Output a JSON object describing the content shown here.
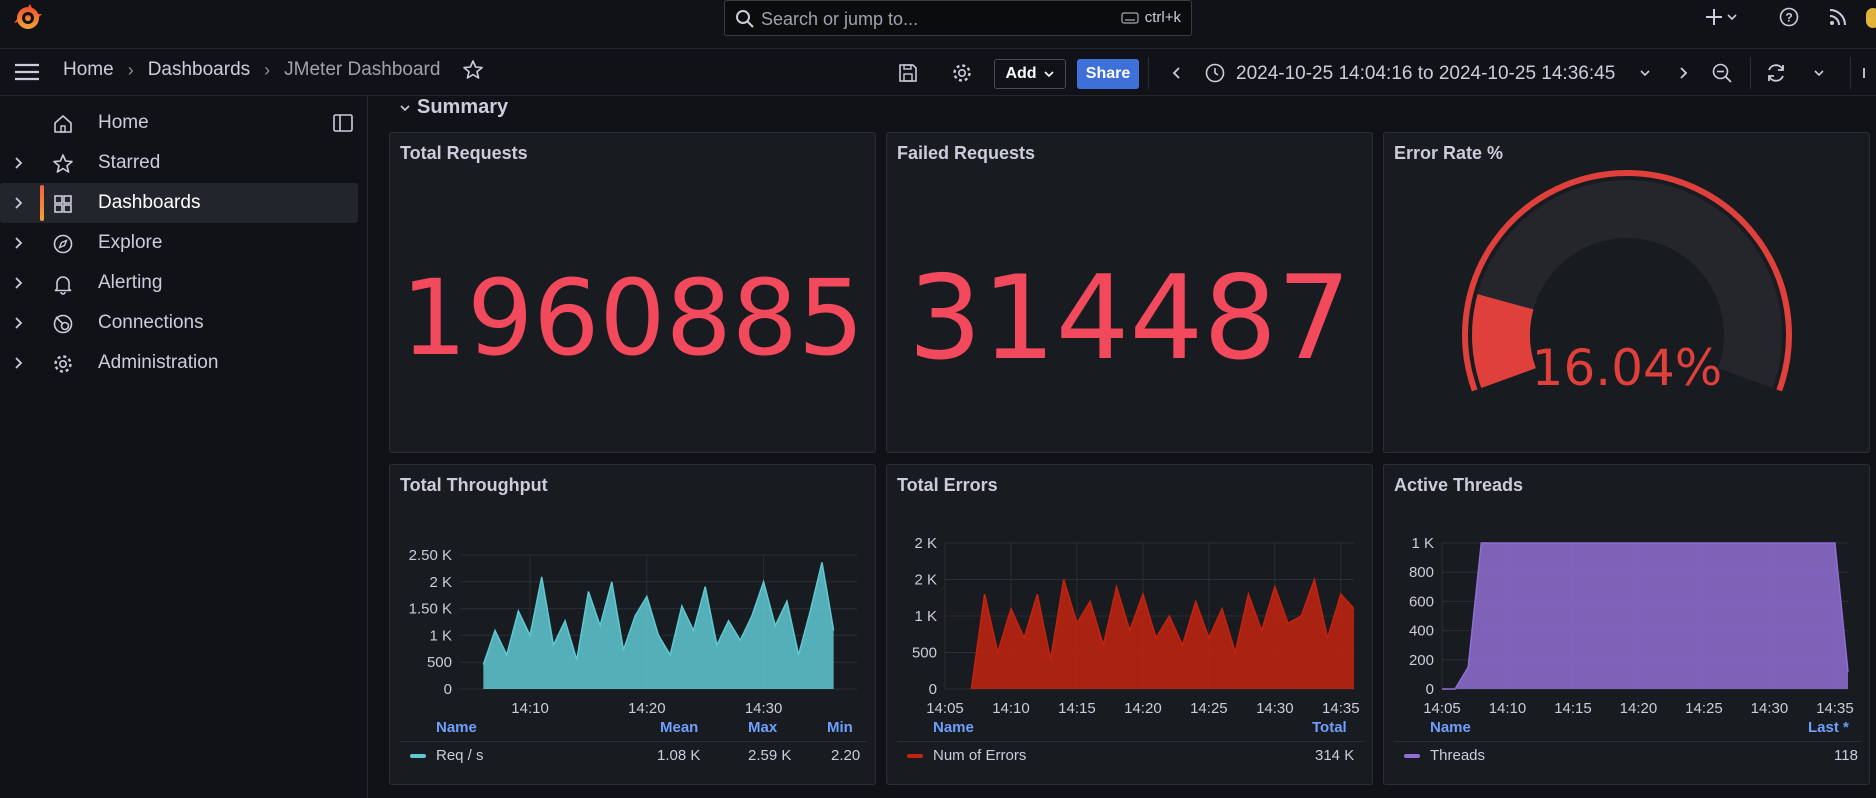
{
  "search": {
    "placeholder": "Search or jump to...",
    "shortcut": "ctrl+k"
  },
  "breadcrumb": {
    "home": "Home",
    "dashboards": "Dashboards",
    "current": "JMeter Dashboard"
  },
  "toolbar": {
    "add_label": "Add",
    "share_label": "Share",
    "time_range": "2024-10-25 14:04:16 to 2024-10-25 14:36:45"
  },
  "sidebar": {
    "items": [
      {
        "label": "Home",
        "icon": "home-icon"
      },
      {
        "label": "Starred",
        "icon": "star-icon"
      },
      {
        "label": "Dashboards",
        "icon": "dashboards-grid-icon"
      },
      {
        "label": "Explore",
        "icon": "compass-icon"
      },
      {
        "label": "Alerting",
        "icon": "bell-icon"
      },
      {
        "label": "Connections",
        "icon": "connections-icon"
      },
      {
        "label": "Administration",
        "icon": "gear-icon"
      }
    ]
  },
  "row": {
    "title": "Summary"
  },
  "panels": {
    "total_requests": {
      "title": "Total Requests",
      "value": "1960885"
    },
    "failed_requests": {
      "title": "Failed Requests",
      "value": "314487"
    },
    "error_rate": {
      "title": "Error Rate %",
      "value": "16.04%",
      "fraction": 0.1604
    },
    "throughput": {
      "title": "Total Throughput",
      "legend": {
        "name_h": "Name",
        "mean_h": "Mean",
        "max_h": "Max",
        "min_h": "Min",
        "series": "Req / s",
        "mean": "1.08 K",
        "max": "2.59 K",
        "min": "2.20"
      }
    },
    "errors": {
      "title": "Total Errors",
      "legend": {
        "name_h": "Name",
        "total_h": "Total",
        "series": "Num of Errors",
        "total": "314 K"
      }
    },
    "threads": {
      "title": "Active Threads",
      "legend": {
        "name_h": "Name",
        "last_h": "Last *",
        "series": "Threads",
        "last": "118"
      }
    }
  },
  "chart_data": [
    {
      "type": "area",
      "title": "Total Throughput",
      "color": "#5fc9d3",
      "yticks": [
        "2.50 K",
        "2 K",
        "1.50 K",
        "1 K",
        "500",
        "0"
      ],
      "ylim": [
        0,
        2750
      ],
      "xticks": [
        "14:10",
        "14:20",
        "14:30"
      ],
      "x": [
        "14:06",
        "14:07",
        "14:08",
        "14:09",
        "14:10",
        "14:11",
        "14:12",
        "14:13",
        "14:14",
        "14:15",
        "14:16",
        "14:17",
        "14:18",
        "14:19",
        "14:20",
        "14:21",
        "14:22",
        "14:23",
        "14:24",
        "14:25",
        "14:26",
        "14:27",
        "14:28",
        "14:29",
        "14:30",
        "14:31",
        "14:32",
        "14:33",
        "14:34",
        "14:35",
        "14:36"
      ],
      "series": [
        {
          "name": "Req / s",
          "values": [
            500,
            1200,
            700,
            1600,
            1100,
            2300,
            900,
            1400,
            600,
            2000,
            1300,
            2200,
            800,
            1500,
            1900,
            1100,
            700,
            1700,
            1200,
            2100,
            900,
            1400,
            1000,
            1500,
            2200,
            1300,
            1800,
            700,
            1600,
            2600,
            1200
          ]
        }
      ]
    },
    {
      "type": "area",
      "title": "Total Errors",
      "color": "#c4230f",
      "yticks": [
        "2 K",
        "2 K",
        "1 K",
        "500",
        "0"
      ],
      "ylim": [
        0,
        2000
      ],
      "xticks": [
        "14:05",
        "14:10",
        "14:15",
        "14:20",
        "14:25",
        "14:30",
        "14:35"
      ],
      "x": [
        "14:07",
        "14:08",
        "14:09",
        "14:10",
        "14:11",
        "14:12",
        "14:13",
        "14:14",
        "14:15",
        "14:16",
        "14:17",
        "14:18",
        "14:19",
        "14:20",
        "14:21",
        "14:22",
        "14:23",
        "14:24",
        "14:25",
        "14:26",
        "14:27",
        "14:28",
        "14:29",
        "14:30",
        "14:31",
        "14:32",
        "14:33",
        "14:34",
        "14:35",
        "14:36"
      ],
      "series": [
        {
          "name": "Num of Errors",
          "values": [
            0,
            1300,
            500,
            1100,
            700,
            1300,
            400,
            1500,
            900,
            1200,
            600,
            1400,
            800,
            1300,
            700,
            1000,
            600,
            1200,
            700,
            1100,
            500,
            1300,
            800,
            1400,
            900,
            1000,
            1500,
            700,
            1300,
            1100
          ]
        }
      ]
    },
    {
      "type": "area",
      "title": "Active Threads",
      "color": "#8f6fd4",
      "yticks": [
        "1 K",
        "800",
        "600",
        "400",
        "200",
        "0"
      ],
      "ylim": [
        0,
        1000
      ],
      "xticks": [
        "14:05",
        "14:10",
        "14:15",
        "14:20",
        "14:25",
        "14:30",
        "14:35"
      ],
      "x": [
        "14:05",
        "14:06",
        "14:07",
        "14:08",
        "14:10",
        "14:15",
        "14:20",
        "14:25",
        "14:30",
        "14:35",
        "14:36"
      ],
      "series": [
        {
          "name": "Threads",
          "values": [
            0,
            0,
            150,
            1000,
            1000,
            1000,
            1000,
            1000,
            1000,
            1000,
            118
          ]
        }
      ]
    }
  ]
}
